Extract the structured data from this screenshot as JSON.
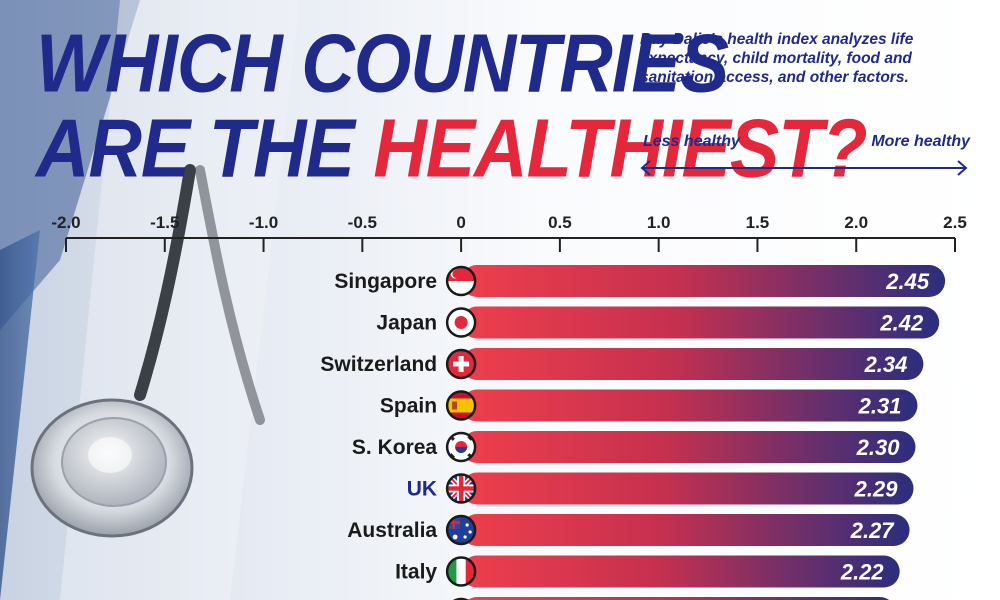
{
  "header": {
    "title_line1": "WHICH COUNTRIES",
    "title_line2_prefix": "ARE THE ",
    "title_line2_accent": "HEALTHIEST?",
    "subtitle_strong": "Ray Dalio's",
    "subtitle_rest": " health index analyzes life expectancy, child mortality, food and sanitation access, and other factors.",
    "less_label": "Less healthy",
    "more_label": "More healthy"
  },
  "colors": {
    "navy": "#1f2a8a",
    "red": "#e4273a",
    "bar_start": "#ee3f4c",
    "bar_end": "#2b2e7e"
  },
  "icons": [
    "singapore-flag-icon",
    "japan-flag-icon",
    "switzerland-flag-icon",
    "spain-flag-icon",
    "south-korea-flag-icon",
    "uk-flag-icon",
    "australia-flag-icon",
    "italy-flag-icon"
  ],
  "chart_data": {
    "type": "bar",
    "orientation": "horizontal",
    "xlim": [
      -2.0,
      2.5
    ],
    "xticks": [
      "-2.0",
      "-1.5",
      "-1.0",
      "-0.5",
      "0",
      "0.5",
      "1.0",
      "1.5",
      "2.0",
      "2.5"
    ],
    "categories": [
      "Singapore",
      "Japan",
      "Switzerland",
      "Spain",
      "S. Korea",
      "UK",
      "Australia",
      "Italy"
    ],
    "values": [
      2.45,
      2.42,
      2.34,
      2.31,
      2.3,
      2.29,
      2.27,
      2.22
    ],
    "value_labels": [
      "2.45",
      "2.42",
      "2.34",
      "2.31",
      "2.30",
      "2.29",
      "2.27",
      "2.22"
    ],
    "highlight_category": "UK",
    "grid": false,
    "legend": "none"
  }
}
